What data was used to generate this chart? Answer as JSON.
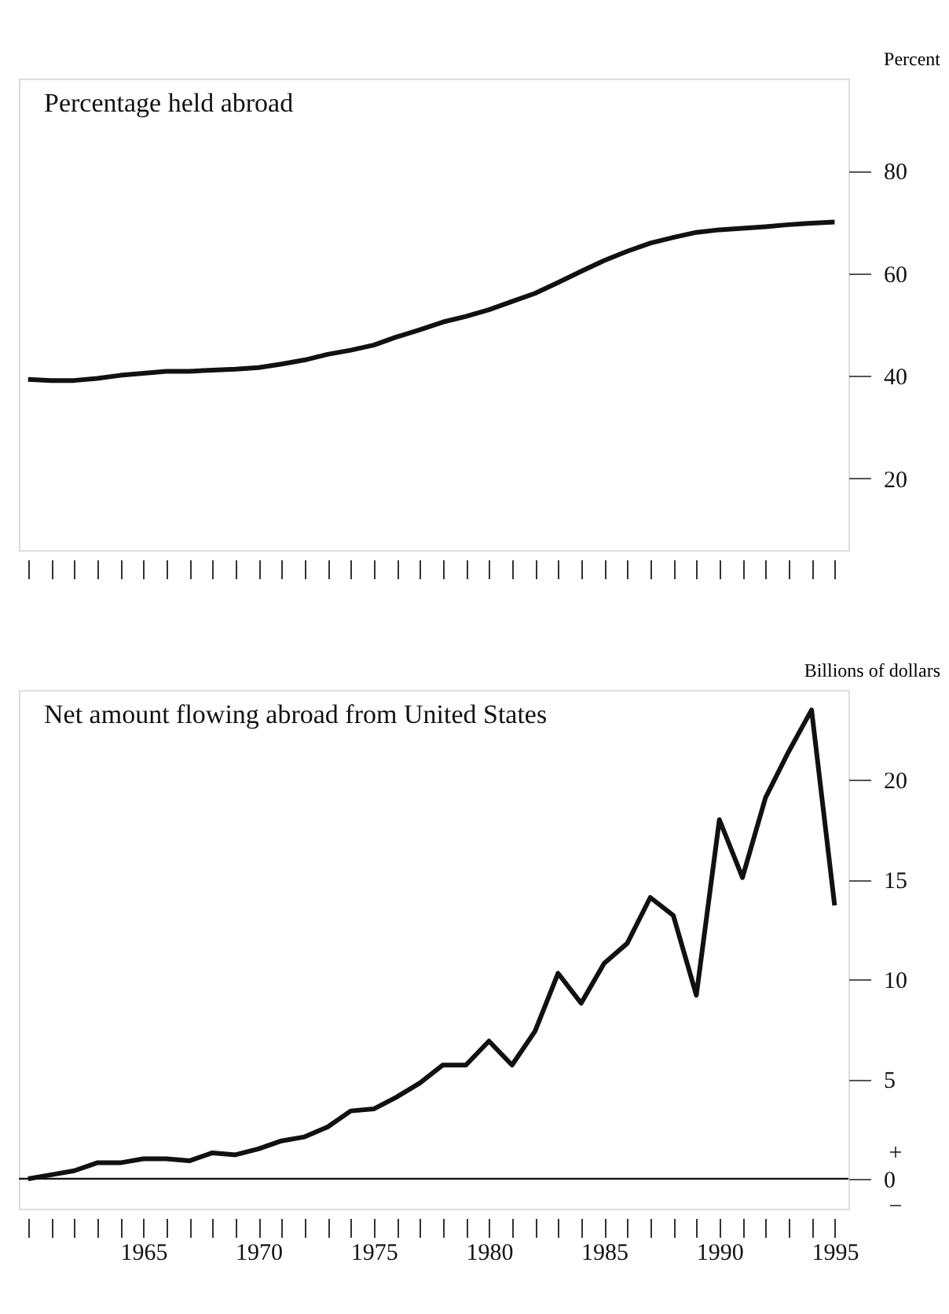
{
  "chart_data": [
    {
      "type": "line",
      "title": "Percentage held abroad",
      "ylabel": "Percent",
      "color": "#111111",
      "line_style": "solid",
      "tick_labels": "y",
      "x": [
        1960,
        1961,
        1962,
        1963,
        1964,
        1965,
        1966,
        1967,
        1968,
        1969,
        1970,
        1971,
        1972,
        1973,
        1974,
        1975,
        1976,
        1977,
        1978,
        1979,
        1980,
        1981,
        1982,
        1983,
        1984,
        1985,
        1986,
        1987,
        1988,
        1989,
        1990,
        1991,
        1992,
        1993,
        1994,
        1995
      ],
      "values": [
        39.3,
        39.1,
        39.1,
        39.5,
        40.1,
        40.5,
        40.9,
        40.9,
        41.1,
        41.3,
        41.6,
        42.3,
        43.1,
        44.2,
        45.0,
        46.0,
        47.6,
        49.0,
        50.5,
        51.6,
        52.9,
        54.5,
        56.1,
        58.2,
        60.4,
        62.5,
        64.3,
        65.9,
        67.0,
        68.0,
        68.5,
        68.8,
        69.1,
        69.5,
        69.8,
        70.0
      ],
      "xlim": [
        1959.6,
        1995.6
      ],
      "ylim": [
        6,
        98
      ],
      "yticks": [
        20,
        40,
        60,
        80
      ],
      "xticks": [
        {
          "value": 1960,
          "label": null
        },
        {
          "value": 1961,
          "label": null
        },
        {
          "value": 1962,
          "label": null
        },
        {
          "value": 1963,
          "label": null
        },
        {
          "value": 1964,
          "label": null
        },
        {
          "value": 1965,
          "label": null
        },
        {
          "value": 1966,
          "label": null
        },
        {
          "value": 1967,
          "label": null
        },
        {
          "value": 1968,
          "label": null
        },
        {
          "value": 1969,
          "label": null
        },
        {
          "value": 1970,
          "label": null
        },
        {
          "value": 1971,
          "label": null
        },
        {
          "value": 1972,
          "label": null
        },
        {
          "value": 1973,
          "label": null
        },
        {
          "value": 1974,
          "label": null
        },
        {
          "value": 1975,
          "label": null
        },
        {
          "value": 1976,
          "label": null
        },
        {
          "value": 1977,
          "label": null
        },
        {
          "value": 1978,
          "label": null
        },
        {
          "value": 1979,
          "label": null
        },
        {
          "value": 1980,
          "label": null
        },
        {
          "value": 1981,
          "label": null
        },
        {
          "value": 1982,
          "label": null
        },
        {
          "value": 1983,
          "label": null
        },
        {
          "value": 1984,
          "label": null
        },
        {
          "value": 1985,
          "label": null
        },
        {
          "value": 1986,
          "label": null
        },
        {
          "value": 1987,
          "label": null
        },
        {
          "value": 1988,
          "label": null
        },
        {
          "value": 1989,
          "label": null
        },
        {
          "value": 1990,
          "label": null
        },
        {
          "value": 1991,
          "label": null
        },
        {
          "value": 1992,
          "label": null
        },
        {
          "value": 1993,
          "label": null
        },
        {
          "value": 1994,
          "label": null
        },
        {
          "value": 1995,
          "label": null
        }
      ]
    },
    {
      "type": "line",
      "title": "Net amount flowing abroad from United States",
      "ylabel": "Billions of dollars",
      "color": "#111111",
      "line_style": "solid",
      "x": [
        1960,
        1961,
        1962,
        1963,
        1964,
        1965,
        1966,
        1967,
        1968,
        1969,
        1970,
        1971,
        1972,
        1973,
        1974,
        1975,
        1976,
        1977,
        1978,
        1979,
        1980,
        1981,
        1982,
        1983,
        1984,
        1985,
        1986,
        1987,
        1988,
        1989,
        1990,
        1991,
        1992,
        1993,
        1994,
        1995
      ],
      "values": [
        0.0,
        0.2,
        0.4,
        0.8,
        0.8,
        1.0,
        1.0,
        0.9,
        1.3,
        1.2,
        1.5,
        1.9,
        2.1,
        2.6,
        3.4,
        3.5,
        4.1,
        4.8,
        5.7,
        5.7,
        6.9,
        5.7,
        7.4,
        10.3,
        8.8,
        10.8,
        11.8,
        14.1,
        13.2,
        9.2,
        18.0,
        15.1,
        19.1,
        21.4,
        23.5,
        13.7
      ],
      "xlim": [
        1959.6,
        1995.6
      ],
      "ylim": [
        -1.5,
        24.5
      ],
      "yticks": [
        0,
        5,
        10,
        15,
        20
      ],
      "annotations": [
        "+",
        "−"
      ],
      "ref_lines": [
        {
          "axis": "y",
          "value": 0,
          "label": null,
          "color": "#111111"
        }
      ],
      "xticks": [
        {
          "value": 1960,
          "label": null
        },
        {
          "value": 1961,
          "label": null
        },
        {
          "value": 1962,
          "label": null
        },
        {
          "value": 1963,
          "label": null
        },
        {
          "value": 1964,
          "label": null
        },
        1965,
        {
          "value": 1966,
          "label": null
        },
        {
          "value": 1967,
          "label": null
        },
        {
          "value": 1968,
          "label": null
        },
        {
          "value": 1969,
          "label": null
        },
        1970,
        {
          "value": 1971,
          "label": null
        },
        {
          "value": 1972,
          "label": null
        },
        {
          "value": 1973,
          "label": null
        },
        {
          "value": 1974,
          "label": null
        },
        1975,
        {
          "value": 1976,
          "label": null
        },
        {
          "value": 1977,
          "label": null
        },
        {
          "value": 1978,
          "label": null
        },
        {
          "value": 1979,
          "label": null
        },
        1980,
        {
          "value": 1981,
          "label": null
        },
        {
          "value": 1982,
          "label": null
        },
        {
          "value": 1983,
          "label": null
        },
        {
          "value": 1984,
          "label": null
        },
        1985,
        {
          "value": 1986,
          "label": null
        },
        {
          "value": 1987,
          "label": null
        },
        {
          "value": 1988,
          "label": null
        },
        {
          "value": 1989,
          "label": null
        },
        1990,
        {
          "value": 1991,
          "label": null
        },
        {
          "value": 1992,
          "label": null
        },
        {
          "value": 1993,
          "label": null
        },
        {
          "value": 1994,
          "label": null
        },
        1995
      ]
    }
  ]
}
